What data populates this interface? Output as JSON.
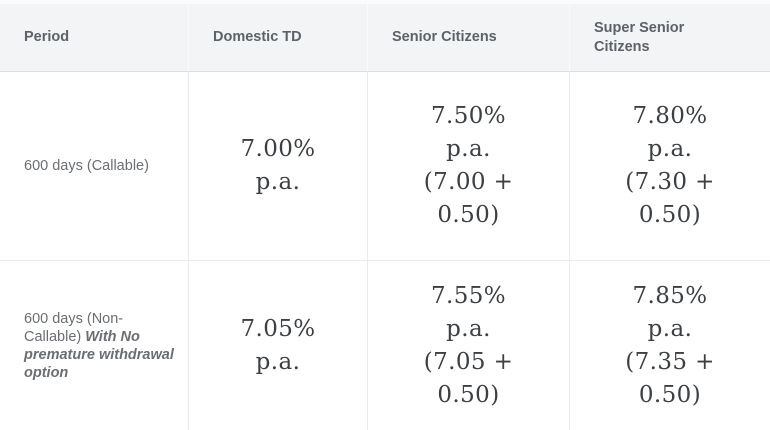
{
  "colors": {
    "header_bg": "#f2f4f6",
    "border": "#e9ebed",
    "header_border_bottom": "#dcdfe2",
    "header_text": "#5d6268",
    "period_text": "#6a6e72",
    "rate_text": "#3d4043",
    "body_bg": "#ffffff"
  },
  "header": {
    "col_period": "Period",
    "col_domestic": "Domestic TD",
    "col_senior": "Senior Citizens",
    "col_super_senior": "Super Senior Citizens"
  },
  "rows": [
    {
      "period": "600 days (Callable)",
      "period_emphasis": "",
      "domestic": "7.00%\np.a.",
      "senior": "7.50%\np.a.\n(7.00 +\n0.50)",
      "super_senior": "7.80%\np.a.\n(7.30 +\n0.50)"
    },
    {
      "period": "600 days (Non-Callable) ",
      "period_emphasis": "With No premature withdrawal option",
      "domestic": "7.05%\np.a.",
      "senior": "7.55%\np.a.\n(7.05 +\n0.50)",
      "super_senior": "7.85%\np.a.\n(7.35 +\n0.50)"
    }
  ],
  "chart_data": {
    "type": "table",
    "columns": [
      "Period",
      "Domestic TD",
      "Senior Citizens",
      "Super Senior Citizens"
    ],
    "rows": [
      [
        "600 days (Callable)",
        "7.00% p.a.",
        "7.50% p.a. (7.00 + 0.50)",
        "7.80% p.a. (7.30 + 0.50)"
      ],
      [
        "600 days (Non-Callable) With No premature withdrawal option",
        "7.05% p.a.",
        "7.55% p.a. (7.05 + 0.50)",
        "7.85% p.a. (7.35 + 0.50)"
      ]
    ],
    "rates_numeric": [
      {
        "period": "600 days (Callable)",
        "domestic_td_pct": 7.0,
        "senior_citizens_pct": 7.5,
        "senior_citizens_base": 7.0,
        "senior_citizens_addition": 0.5,
        "super_senior_pct": 7.8,
        "super_senior_base": 7.3,
        "super_senior_addition": 0.5
      },
      {
        "period": "600 days (Non-Callable) With No premature withdrawal option",
        "domestic_td_pct": 7.05,
        "senior_citizens_pct": 7.55,
        "senior_citizens_base": 7.05,
        "senior_citizens_addition": 0.5,
        "super_senior_pct": 7.85,
        "super_senior_base": 7.35,
        "super_senior_addition": 0.5
      }
    ]
  }
}
